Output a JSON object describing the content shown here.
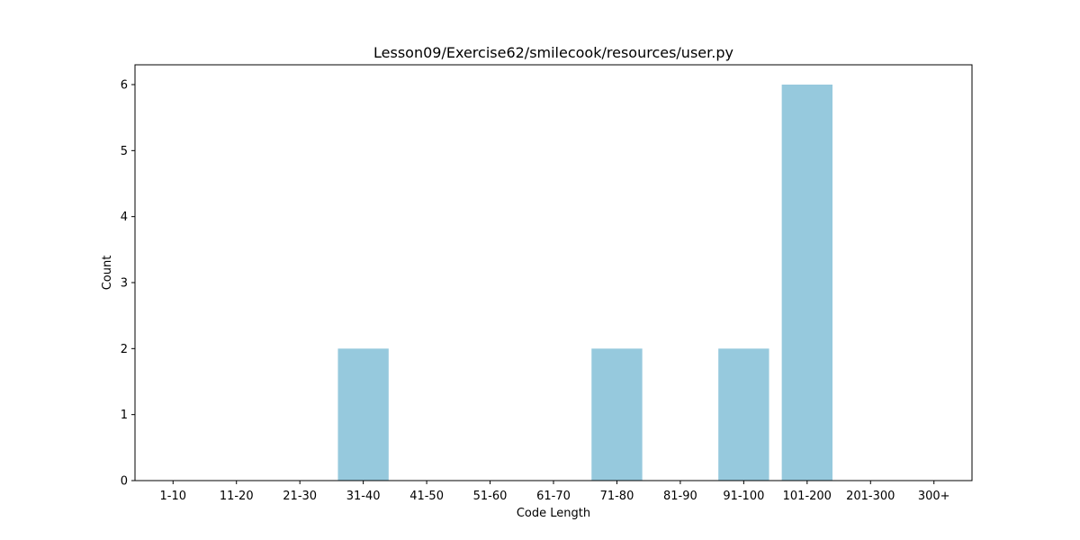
{
  "chart_data": {
    "type": "bar",
    "title": "Lesson09/Exercise62/smilecook/resources/user.py",
    "xlabel": "Code Length",
    "ylabel": "Count",
    "categories": [
      "1-10",
      "11-20",
      "21-30",
      "31-40",
      "41-50",
      "51-60",
      "61-70",
      "71-80",
      "81-90",
      "91-100",
      "101-200",
      "201-300",
      "300+"
    ],
    "values": [
      0,
      0,
      0,
      2,
      0,
      0,
      0,
      2,
      0,
      2,
      6,
      0,
      0
    ],
    "ylim": [
      0,
      6.3
    ],
    "yticks": [
      "0",
      "1",
      "2",
      "3",
      "4",
      "5",
      "6"
    ],
    "bar_color": "#96c9dd",
    "grid": false,
    "legend": false
  }
}
